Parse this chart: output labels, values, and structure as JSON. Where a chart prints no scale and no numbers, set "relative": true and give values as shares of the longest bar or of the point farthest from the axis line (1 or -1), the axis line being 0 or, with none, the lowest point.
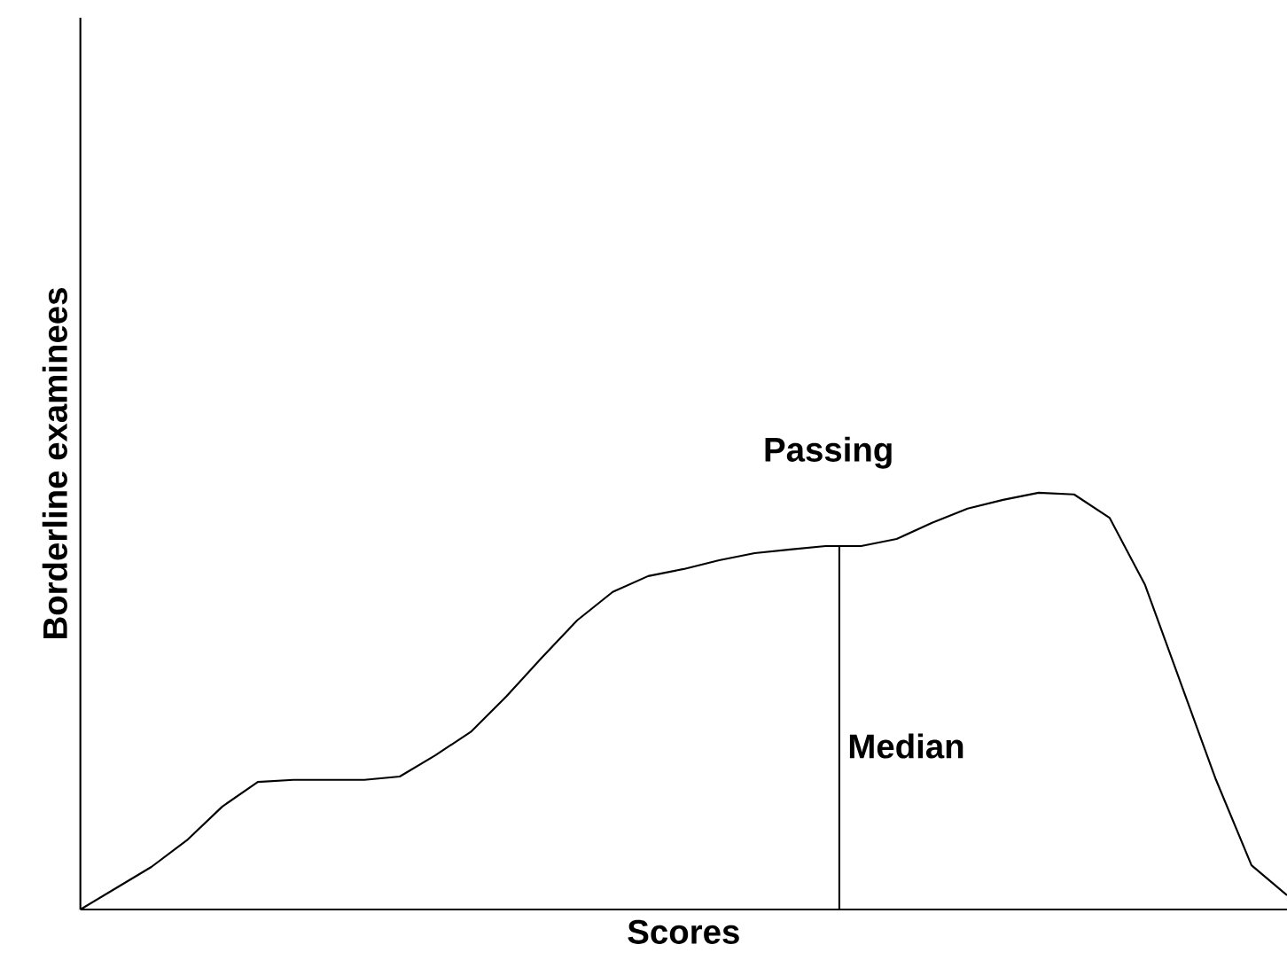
{
  "chart_data": {
    "type": "line",
    "relative": true,
    "xlabel": "Scores",
    "ylabel": "Borderline examinees",
    "categories": [
      null,
      null,
      null,
      null,
      null,
      null,
      null,
      null,
      null,
      null,
      null,
      null,
      null,
      null,
      null,
      null,
      null,
      null,
      null,
      null,
      null,
      null,
      null,
      null,
      null,
      null,
      null,
      null,
      null,
      null,
      null,
      null,
      null,
      null,
      null
    ],
    "values": [
      0,
      0.051,
      0.102,
      0.166,
      0.247,
      0.306,
      0.311,
      0.311,
      0.311,
      0.319,
      0.37,
      0.426,
      0.511,
      0.604,
      0.694,
      0.762,
      0.8,
      0.817,
      0.838,
      0.855,
      0.864,
      0.872,
      0.872,
      0.889,
      0.928,
      0.962,
      0.983,
      1,
      0.996,
      0.94,
      0.779,
      0.545,
      0.311,
      0.106,
      0.034
    ],
    "color": "#000000",
    "marker": "none",
    "line_style": "solid",
    "annotations": [
      "Passing",
      "Median"
    ]
  }
}
